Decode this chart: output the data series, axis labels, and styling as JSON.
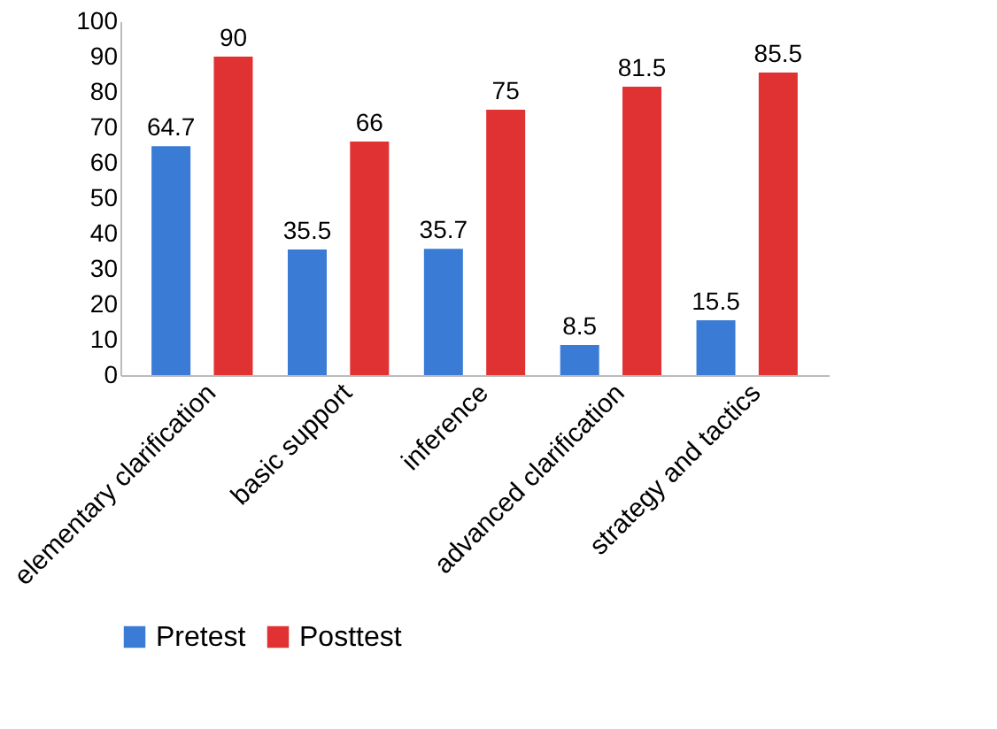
{
  "chart_data": {
    "type": "bar",
    "categories": [
      "elementary clarification",
      "basic support",
      "inference",
      "advanced clarification",
      "strategy and tactics"
    ],
    "series": [
      {
        "name": "Pretest",
        "color": "#3a7bd5",
        "values": [
          64.7,
          35.5,
          35.7,
          8.5,
          15.5
        ]
      },
      {
        "name": "Posttest",
        "color": "#e03232",
        "values": [
          90,
          66,
          75,
          81.5,
          85.5
        ]
      }
    ],
    "ylim": [
      0,
      100
    ],
    "yticks": [
      0,
      10,
      20,
      30,
      40,
      50,
      60,
      70,
      80,
      90,
      100
    ],
    "grid": false,
    "legend": "bottom",
    "data_labels": true
  }
}
